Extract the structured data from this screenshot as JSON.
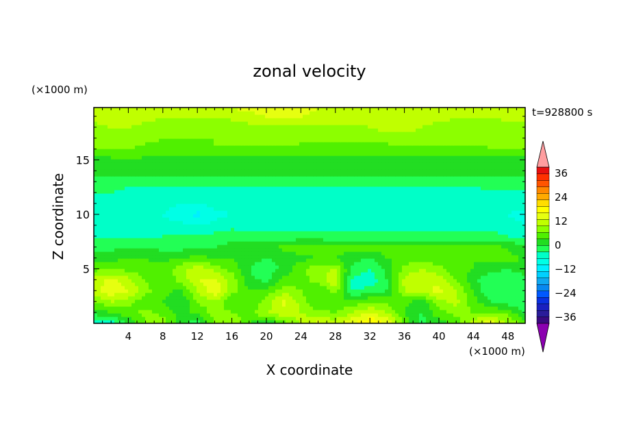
{
  "chart_data": {
    "type": "heatmap",
    "title": "zonal velocity",
    "xlabel": "X coordinate",
    "ylabel": "Z coordinate",
    "x_unit_label": "(×1000 m)",
    "y_unit_label": "(×1000 m)",
    "time_label": "t=928800 s",
    "xlim": [
      0,
      50
    ],
    "ylim": [
      0,
      19.8
    ],
    "x_ticks": [
      4,
      8,
      12,
      16,
      20,
      24,
      28,
      32,
      36,
      40,
      44,
      48
    ],
    "y_ticks": [
      5,
      10,
      15
    ],
    "colorbar": {
      "levels": [
        -42,
        -39,
        -36,
        -33,
        -30,
        -27,
        -24,
        -21,
        -18,
        -15,
        -12,
        -9,
        -6,
        -3,
        0,
        3,
        6,
        9,
        12,
        15,
        18,
        21,
        24,
        27,
        30,
        33,
        36,
        39,
        42
      ],
      "tick_values": [
        36,
        24,
        12,
        0,
        -12,
        -24,
        -36
      ],
      "tick_labels": [
        "36",
        "24",
        "12",
        "0",
        "−12",
        "−24",
        "−36"
      ],
      "colors": [
        "#8b00b0",
        "#3a0a80",
        "#2a1c9a",
        "#1a20c0",
        "#0a30e0",
        "#0058ff",
        "#0888f0",
        "#10a8f0",
        "#00d0ff",
        "#00f0ff",
        "#00ffe6",
        "#00ffc8",
        "#22ff55",
        "#22dd22",
        "#50f000",
        "#8cff00",
        "#c0ff00",
        "#e6ff10",
        "#ffff00",
        "#ffdd00",
        "#ffaa00",
        "#ff8800",
        "#ff5500",
        "#ff3000",
        "#e81010",
        "#ff9ea0"
      ]
    },
    "field": {
      "x": [
        0,
        2,
        4,
        6,
        8,
        10,
        12,
        14,
        16,
        18,
        20,
        22,
        24,
        26,
        28,
        30,
        32,
        34,
        36,
        38,
        40,
        42,
        44,
        46,
        48,
        50
      ],
      "z": [
        0,
        1,
        2,
        3,
        4,
        5,
        6,
        7,
        8,
        9,
        10,
        11,
        12,
        13,
        14,
        15,
        16,
        17,
        18,
        19,
        19.8
      ],
      "u": [
        [
          -9,
          -8,
          -3,
          3,
          5,
          -2,
          -5,
          3,
          6,
          0,
          -3,
          1,
          7,
          10,
          8,
          12,
          16,
          12,
          2,
          -4,
          -2,
          1,
          8,
          12,
          6,
          2
        ],
        [
          -2,
          0,
          2,
          4,
          2,
          -1,
          1,
          4,
          3,
          2,
          6,
          8,
          6,
          4,
          3,
          6,
          9,
          6,
          0,
          -3,
          2,
          4,
          3,
          3,
          2,
          -4
        ],
        [
          3,
          6,
          4,
          1,
          0,
          -3,
          3,
          5,
          1,
          0,
          4,
          10,
          5,
          0,
          0,
          1,
          3,
          2,
          1,
          -2,
          5,
          7,
          1,
          -3,
          -5,
          -6
        ],
        [
          8,
          11,
          9,
          4,
          1,
          -1,
          6,
          12,
          4,
          0,
          1,
          5,
          3,
          0,
          4,
          -6,
          -5,
          -3,
          6,
          8,
          10,
          6,
          0,
          -6,
          -6,
          -5
        ],
        [
          7,
          10,
          7,
          3,
          0,
          4,
          9,
          10,
          5,
          -2,
          -4,
          1,
          2,
          4,
          9,
          -7,
          -8,
          -3,
          7,
          9,
          8,
          3,
          -2,
          -6,
          -6,
          -5
        ],
        [
          2,
          3,
          2,
          1,
          1,
          5,
          8,
          5,
          2,
          -3,
          -5,
          -2,
          2,
          5,
          6,
          -4,
          -6,
          -2,
          4,
          6,
          4,
          1,
          0,
          -2,
          -3,
          -1
        ],
        [
          -2,
          -1,
          0,
          0,
          -1,
          0,
          1,
          0,
          0,
          -2,
          -3,
          -2,
          -1,
          0,
          0,
          -2,
          -3,
          0,
          1,
          2,
          1,
          0,
          0,
          1,
          1,
          0
        ],
        [
          -4,
          -4,
          -3,
          -3,
          -4,
          -4,
          -4,
          -3,
          -2,
          -2,
          -1,
          1,
          2,
          2,
          1,
          1,
          1,
          1,
          1,
          1,
          1,
          1,
          1,
          1,
          0,
          -3
        ],
        [
          -6,
          -6,
          -6,
          -6,
          -6,
          -5,
          -5,
          -5,
          -4,
          -4,
          -5,
          -5,
          -5,
          -5,
          -5,
          -5,
          -5,
          -5,
          -5,
          -5,
          -5,
          -5,
          -5,
          -5,
          -6,
          -6
        ],
        [
          -7,
          -7,
          -7,
          -7,
          -8,
          -8,
          -9,
          -8,
          -7,
          -8,
          -8,
          -8,
          -8,
          -8,
          -8,
          -8,
          -8,
          -8,
          -8,
          -8,
          -8,
          -8,
          -7,
          -7,
          -8,
          -9
        ],
        [
          -7,
          -8,
          -8,
          -8,
          -9,
          -11,
          -13,
          -10,
          -9,
          -9,
          -9,
          -9,
          -9,
          -9,
          -9,
          -9,
          -9,
          -9,
          -9,
          -9,
          -9,
          -9,
          -9,
          -8,
          -9,
          -10
        ],
        [
          -7,
          -8,
          -8,
          -8,
          -8,
          -9,
          -9,
          -8,
          -8,
          -8,
          -9,
          -9,
          -9,
          -9,
          -9,
          -9,
          -9,
          -9,
          -9,
          -9,
          -9,
          -9,
          -9,
          -8,
          -8,
          -8
        ],
        [
          -6,
          -6,
          -7,
          -7,
          -7,
          -7,
          -7,
          -7,
          -7,
          -7,
          -7,
          -8,
          -8,
          -8,
          -8,
          -8,
          -8,
          -8,
          -8,
          -8,
          -8,
          -7,
          -7,
          -7,
          -7,
          -7
        ],
        [
          -4,
          -4,
          -5,
          -5,
          -5,
          -5,
          -5,
          -5,
          -5,
          -5,
          -5,
          -5,
          -5,
          -5,
          -5,
          -5,
          -5,
          -5,
          -5,
          -5,
          -5,
          -5,
          -5,
          -4,
          -4,
          -4
        ],
        [
          -2,
          -2,
          -2,
          -2,
          -2,
          -2,
          -2,
          -2,
          -2,
          -2,
          -2,
          -2,
          -2,
          -2,
          -2,
          -2,
          -2,
          -2,
          -2,
          -2,
          -2,
          -2,
          -2,
          -2,
          -2,
          -2
        ],
        [
          -1,
          -1,
          0,
          -1,
          -2,
          -2,
          -1,
          -1,
          -1,
          -1,
          -1,
          -1,
          -1,
          -1,
          -1,
          -1,
          -1,
          -1,
          -1,
          -1,
          -1,
          -1,
          -1,
          -1,
          -1,
          -1
        ],
        [
          3,
          3,
          3,
          2,
          2,
          2,
          2,
          3,
          2,
          2,
          2,
          2,
          2,
          1,
          1,
          1,
          1,
          1,
          2,
          2,
          2,
          2,
          2,
          3,
          3,
          3
        ],
        [
          4,
          5,
          5,
          4,
          3,
          3,
          3,
          3,
          4,
          4,
          4,
          4,
          4,
          4,
          4,
          4,
          4,
          5,
          5,
          5,
          4,
          4,
          4,
          4,
          5,
          5
        ],
        [
          5,
          6,
          6,
          5,
          5,
          3,
          3,
          3,
          4,
          5,
          5,
          5,
          5,
          5,
          5,
          5,
          6,
          7,
          7,
          6,
          5,
          5,
          4,
          4,
          5,
          5
        ],
        [
          7,
          8,
          8,
          7,
          6,
          6,
          6,
          6,
          7,
          8,
          9,
          10,
          9,
          8,
          8,
          8,
          8,
          8,
          7,
          7,
          7,
          6,
          6,
          6,
          7,
          7
        ],
        [
          9,
          9,
          9,
          8,
          8,
          8,
          8,
          8,
          9,
          10,
          10,
          11,
          10,
          9,
          9,
          9,
          9,
          9,
          9,
          9,
          8,
          8,
          8,
          8,
          9,
          9
        ]
      ]
    }
  }
}
